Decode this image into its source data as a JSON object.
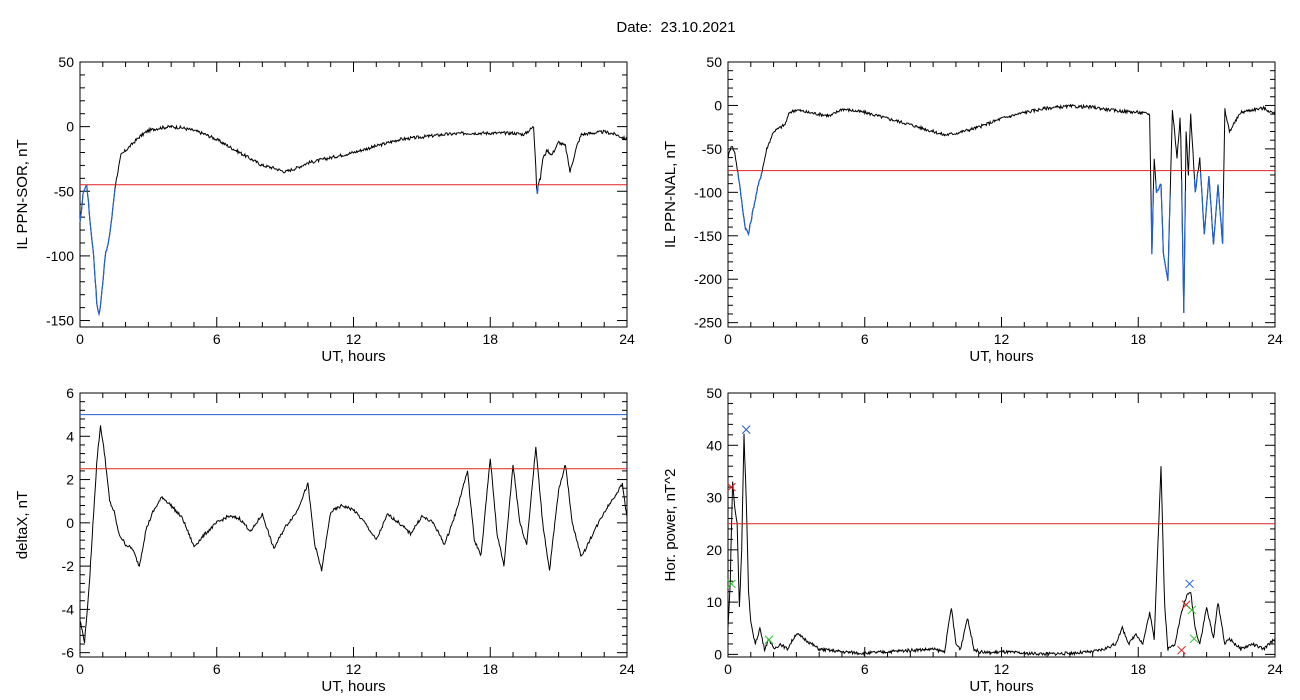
{
  "page": {
    "title": "Date:  23.10.2021"
  },
  "colors": {
    "black": "#000000",
    "red": "#dd2222",
    "blue": "#1f5fd6",
    "green": "#2fbf2f"
  },
  "chart_data": [
    {
      "type": "line",
      "xlabel": "UT, hours",
      "ylabel": "IL PPN-SOR, nT",
      "xlim": [
        0,
        24
      ],
      "ylim": [
        -155,
        50
      ],
      "xticks": [
        0,
        6,
        12,
        18,
        24
      ],
      "yticks": [
        50,
        0,
        -50,
        -100,
        -150
      ],
      "threshold_red": -45,
      "highlight_below_threshold": "blue",
      "series": [
        {
          "x": [
            0,
            0.15,
            0.3,
            0.45,
            0.6,
            0.75,
            0.85,
            0.95,
            1.1,
            1.25,
            1.4,
            1.55,
            1.8,
            2.2,
            2.6,
            3.0,
            3.5,
            4.0,
            4.5,
            5.0,
            5.5,
            6.0,
            6.5,
            7.0,
            7.5,
            8.0,
            8.5,
            9.0,
            9.5,
            10.0,
            11.0,
            12.0,
            13.0,
            14.0,
            15.0,
            16.0,
            17.0,
            18.0,
            19.0,
            19.5,
            19.9,
            20.0,
            20.05,
            20.1,
            20.2,
            20.3,
            20.5,
            20.7,
            21.0,
            21.3,
            21.5,
            21.8,
            22.0,
            22.5,
            23.0,
            23.5,
            24.0
          ],
          "y": [
            -75,
            -50,
            -45,
            -75,
            -100,
            -140,
            -145,
            -130,
            -100,
            -90,
            -70,
            -45,
            -22,
            -15,
            -8,
            -3,
            -1,
            0,
            -1,
            -3,
            -6,
            -10,
            -15,
            -20,
            -25,
            -30,
            -32,
            -35,
            -32,
            -28,
            -24,
            -20,
            -15,
            -10,
            -8,
            -6,
            -5,
            -5,
            -5,
            -6,
            0,
            -30,
            -55,
            -45,
            -40,
            -25,
            -18,
            -22,
            -12,
            -15,
            -35,
            -15,
            -6,
            -5,
            -4,
            -6,
            -10
          ]
        }
      ]
    },
    {
      "type": "line",
      "xlabel": "UT, hours",
      "ylabel": "IL PPN-NAL, nT",
      "xlim": [
        0,
        24
      ],
      "ylim": [
        -255,
        50
      ],
      "xticks": [
        0,
        6,
        12,
        18,
        24
      ],
      "yticks": [
        50,
        0,
        -50,
        -100,
        -150,
        -200,
        -250
      ],
      "threshold_red": -75,
      "highlight_below_threshold": "blue",
      "series": [
        {
          "x": [
            0,
            0.15,
            0.3,
            0.45,
            0.6,
            0.75,
            0.9,
            1.1,
            1.3,
            1.5,
            1.7,
            2.0,
            2.5,
            2.7,
            3.0,
            3.5,
            4.0,
            4.5,
            5.0,
            5.5,
            6.0,
            7.0,
            8.0,
            9.0,
            9.5,
            10.0,
            11.0,
            12.0,
            13.0,
            14.0,
            15.0,
            16.0,
            17.0,
            18.0,
            18.5,
            18.6,
            18.7,
            18.8,
            19.0,
            19.1,
            19.3,
            19.5,
            19.7,
            19.85,
            20.0,
            20.1,
            20.2,
            20.3,
            20.5,
            20.7,
            20.9,
            21.1,
            21.3,
            21.5,
            21.7,
            21.8,
            22.0,
            22.5,
            23.0,
            23.5,
            24.0
          ],
          "y": [
            -60,
            -45,
            -55,
            -80,
            -110,
            -140,
            -148,
            -120,
            -95,
            -75,
            -50,
            -30,
            -22,
            -8,
            -5,
            -8,
            -10,
            -12,
            -4,
            -6,
            -8,
            -15,
            -22,
            -30,
            -34,
            -32,
            -25,
            -15,
            -8,
            -3,
            -1,
            -2,
            -6,
            -8,
            -10,
            -170,
            -60,
            -100,
            -90,
            -170,
            -200,
            -5,
            -60,
            -10,
            -240,
            -30,
            -80,
            -10,
            -100,
            -60,
            -150,
            -80,
            -160,
            -90,
            -160,
            -5,
            -30,
            -8,
            -5,
            -3,
            -10
          ]
        }
      ]
    },
    {
      "type": "line",
      "xlabel": "UT, hours",
      "ylabel": "deltaX, nT",
      "xlim": [
        0,
        24
      ],
      "ylim": [
        -6.2,
        6
      ],
      "xticks": [
        0,
        6,
        12,
        18,
        24
      ],
      "yticks": [
        6,
        4,
        2,
        0,
        -2,
        -4,
        -6
      ],
      "threshold_red": 2.5,
      "threshold_blue": 5.0,
      "series": [
        {
          "x": [
            0,
            0.2,
            0.4,
            0.6,
            0.75,
            0.9,
            1.1,
            1.3,
            1.5,
            1.7,
            2.0,
            2.3,
            2.6,
            2.9,
            3.2,
            3.6,
            4.0,
            4.5,
            5.0,
            5.5,
            6.0,
            6.5,
            7.0,
            7.5,
            8.0,
            8.5,
            9.0,
            9.5,
            10.0,
            10.3,
            10.6,
            11.0,
            11.5,
            12.0,
            12.5,
            13.0,
            13.5,
            14.0,
            14.5,
            15.0,
            15.5,
            16.0,
            16.5,
            17.0,
            17.3,
            17.6,
            18.0,
            18.3,
            18.6,
            19.0,
            19.3,
            19.6,
            20.0,
            20.3,
            20.6,
            21.0,
            21.3,
            21.6,
            22.0,
            22.5,
            23.0,
            23.5,
            23.8,
            24.0
          ],
          "y": [
            -4.5,
            -5.5,
            -3.0,
            0.5,
            3.0,
            4.5,
            3.0,
            1.0,
            0.5,
            -0.5,
            -1.0,
            -1.2,
            -2.0,
            -0.3,
            0.5,
            1.2,
            0.8,
            0.2,
            -1.1,
            -0.5,
            0.0,
            0.3,
            0.2,
            -0.4,
            0.4,
            -1.2,
            -0.2,
            0.5,
            1.8,
            -1.0,
            -2.2,
            0.5,
            0.8,
            0.6,
            0.0,
            -0.8,
            0.4,
            0.0,
            -0.5,
            0.3,
            0.0,
            -1.0,
            0.5,
            2.4,
            -0.8,
            -1.5,
            3.0,
            -0.5,
            -2.0,
            2.7,
            0.0,
            -1.0,
            3.5,
            0.0,
            -2.2,
            1.5,
            2.7,
            0.0,
            -1.6,
            -0.5,
            0.5,
            1.3,
            1.8,
            0.2
          ]
        }
      ]
    },
    {
      "type": "line",
      "xlabel": "UT, hours",
      "ylabel": "Hor. power, nT^2",
      "xlim": [
        0,
        24
      ],
      "ylim": [
        -0.5,
        50
      ],
      "xticks": [
        0,
        6,
        12,
        18,
        24
      ],
      "yticks": [
        50,
        40,
        30,
        20,
        10,
        0
      ],
      "threshold_red": 25,
      "series": [
        {
          "x": [
            0,
            0.1,
            0.2,
            0.3,
            0.4,
            0.5,
            0.6,
            0.7,
            0.8,
            0.9,
            1.0,
            1.2,
            1.4,
            1.6,
            1.8,
            2.0,
            2.3,
            2.6,
            3.0,
            4.0,
            5.0,
            6.0,
            7.0,
            8.0,
            9.0,
            9.5,
            9.8,
            10.0,
            10.2,
            10.5,
            10.8,
            11.0,
            11.5,
            12.0,
            13.0,
            14.0,
            15.0,
            16.0,
            16.5,
            17.0,
            17.3,
            17.6,
            17.9,
            18.2,
            18.5,
            18.7,
            18.85,
            19.0,
            19.15,
            19.3,
            19.6,
            19.9,
            20.1,
            20.3,
            20.5,
            20.7,
            21.0,
            21.3,
            21.5,
            21.8,
            22.0,
            22.5,
            23.0,
            23.5,
            24.0
          ],
          "y": [
            5,
            14,
            33,
            28,
            25,
            9,
            20,
            42,
            30,
            12,
            6,
            2,
            5,
            1,
            3,
            1,
            2,
            1,
            4,
            1,
            0.5,
            0.2,
            0.5,
            0.8,
            1.0,
            0.5,
            9,
            2,
            1,
            7,
            1,
            0.5,
            0.3,
            0.5,
            0.2,
            0.1,
            0.2,
            0.5,
            1.0,
            2,
            5,
            2,
            4,
            2,
            8,
            3,
            20,
            36,
            10,
            1,
            2,
            8,
            11,
            12,
            5,
            2,
            9,
            3,
            10,
            2,
            3,
            1,
            2,
            1,
            3
          ]
        }
      ],
      "markers": [
        {
          "x": 0.8,
          "y": 43,
          "shape": "x",
          "color": "blue"
        },
        {
          "x": 0.15,
          "y": 32,
          "shape": "x",
          "color": "red"
        },
        {
          "x": 0.15,
          "y": 13.5,
          "shape": "x",
          "color": "green"
        },
        {
          "x": 1.8,
          "y": 2.8,
          "shape": "x",
          "color": "green"
        },
        {
          "x": 20.25,
          "y": 13.5,
          "shape": "x",
          "color": "blue"
        },
        {
          "x": 20.1,
          "y": 9.5,
          "shape": "x",
          "color": "red"
        },
        {
          "x": 20.35,
          "y": 8.5,
          "shape": "x",
          "color": "green"
        },
        {
          "x": 20.45,
          "y": 3.0,
          "shape": "x",
          "color": "green"
        },
        {
          "x": 19.9,
          "y": 0.8,
          "shape": "x",
          "color": "red"
        }
      ]
    }
  ]
}
